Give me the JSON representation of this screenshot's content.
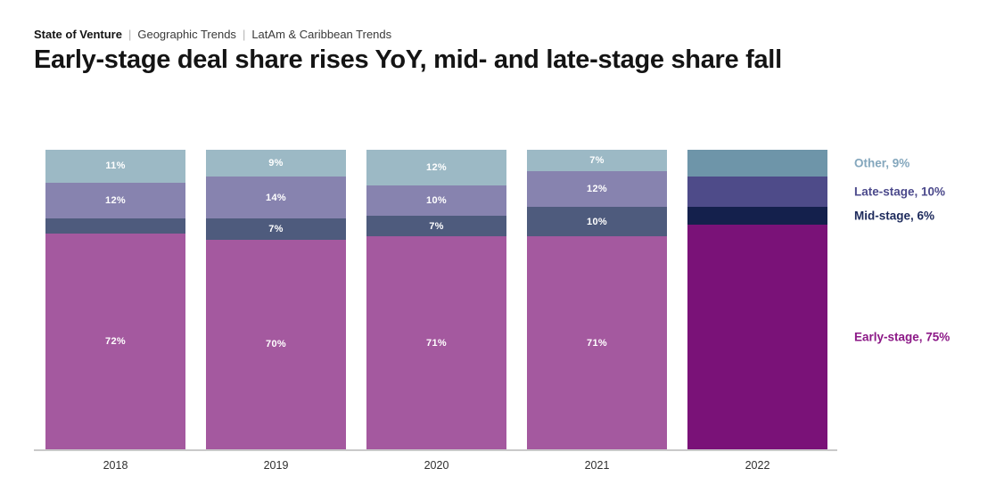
{
  "breadcrumb": {
    "separator": "|",
    "items": [
      "State of Venture",
      "Geographic Trends",
      "LatAm & Caribbean Trends"
    ]
  },
  "title": "Early-stage deal share rises YoY, mid- and late-stage share fall",
  "chart_data": {
    "type": "bar",
    "stacked": true,
    "percent": true,
    "unit": "%",
    "title": "Early-stage deal share rises YoY, mid- and late-stage share fall",
    "categories": [
      "2018",
      "2019",
      "2020",
      "2021",
      "2022"
    ],
    "highlight_category": "2022",
    "series_order": "top-to-bottom",
    "series": [
      {
        "name": "Other",
        "values": [
          11,
          9,
          12,
          7,
          9
        ],
        "labels": [
          "11%",
          "9%",
          "12%",
          "7%",
          ""
        ],
        "color": "#9cb9c5",
        "highlight_color": "#6e95a9"
      },
      {
        "name": "Late-stage",
        "values": [
          12,
          14,
          10,
          12,
          10
        ],
        "labels": [
          "12%",
          "14%",
          "10%",
          "12%",
          ""
        ],
        "color": "#8783af",
        "highlight_color": "#4e4b89"
      },
      {
        "name": "Mid-stage",
        "values": [
          5,
          7,
          7,
          10,
          6
        ],
        "labels": [
          "",
          "7%",
          "7%",
          "10%",
          ""
        ],
        "color": "#4e5b7d",
        "highlight_color": "#14204c"
      },
      {
        "name": "Early-stage",
        "values": [
          72,
          70,
          71,
          71,
          75
        ],
        "labels": [
          "72%",
          "70%",
          "71%",
          "71%",
          ""
        ],
        "color": "#a4599f",
        "highlight_color": "#7a1278"
      }
    ],
    "legend": [
      {
        "text": "Other, 9%",
        "color": "#84a7bd"
      },
      {
        "text": "Late-stage, 10%",
        "color": "#4c4a8c"
      },
      {
        "text": "Mid-stage, 6%",
        "color": "#1d2a5c"
      },
      {
        "text": "Early-stage, 75%",
        "color": "#8c1987"
      }
    ],
    "legend_position": "right",
    "grid": false,
    "ylim": [
      0,
      100
    ]
  }
}
